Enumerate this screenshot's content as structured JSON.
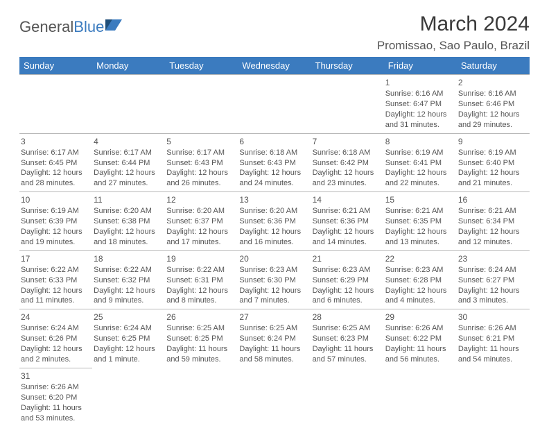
{
  "logo": {
    "text1": "General",
    "text2": "Blue"
  },
  "title": "March 2024",
  "location": "Promissao, Sao Paulo, Brazil",
  "colors": {
    "header_bg": "#3b7bbf",
    "header_fg": "#ffffff",
    "cell_border": "#b8b8b8",
    "week_top_border": "#3b7bbf",
    "text": "#555555",
    "background": "#ffffff"
  },
  "fonts": {
    "title_size_pt": 30,
    "location_size_pt": 17,
    "dayhead_size_pt": 13,
    "cell_size_pt": 11
  },
  "day_headers": [
    "Sunday",
    "Monday",
    "Tuesday",
    "Wednesday",
    "Thursday",
    "Friday",
    "Saturday"
  ],
  "month": {
    "first_weekday": 5,
    "days_in_month": 31
  },
  "days": {
    "1": {
      "sunrise": "6:16 AM",
      "sunset": "6:47 PM",
      "daylight": "12 hours and 31 minutes."
    },
    "2": {
      "sunrise": "6:16 AM",
      "sunset": "6:46 PM",
      "daylight": "12 hours and 29 minutes."
    },
    "3": {
      "sunrise": "6:17 AM",
      "sunset": "6:45 PM",
      "daylight": "12 hours and 28 minutes."
    },
    "4": {
      "sunrise": "6:17 AM",
      "sunset": "6:44 PM",
      "daylight": "12 hours and 27 minutes."
    },
    "5": {
      "sunrise": "6:17 AM",
      "sunset": "6:43 PM",
      "daylight": "12 hours and 26 minutes."
    },
    "6": {
      "sunrise": "6:18 AM",
      "sunset": "6:43 PM",
      "daylight": "12 hours and 24 minutes."
    },
    "7": {
      "sunrise": "6:18 AM",
      "sunset": "6:42 PM",
      "daylight": "12 hours and 23 minutes."
    },
    "8": {
      "sunrise": "6:19 AM",
      "sunset": "6:41 PM",
      "daylight": "12 hours and 22 minutes."
    },
    "9": {
      "sunrise": "6:19 AM",
      "sunset": "6:40 PM",
      "daylight": "12 hours and 21 minutes."
    },
    "10": {
      "sunrise": "6:19 AM",
      "sunset": "6:39 PM",
      "daylight": "12 hours and 19 minutes."
    },
    "11": {
      "sunrise": "6:20 AM",
      "sunset": "6:38 PM",
      "daylight": "12 hours and 18 minutes."
    },
    "12": {
      "sunrise": "6:20 AM",
      "sunset": "6:37 PM",
      "daylight": "12 hours and 17 minutes."
    },
    "13": {
      "sunrise": "6:20 AM",
      "sunset": "6:36 PM",
      "daylight": "12 hours and 16 minutes."
    },
    "14": {
      "sunrise": "6:21 AM",
      "sunset": "6:36 PM",
      "daylight": "12 hours and 14 minutes."
    },
    "15": {
      "sunrise": "6:21 AM",
      "sunset": "6:35 PM",
      "daylight": "12 hours and 13 minutes."
    },
    "16": {
      "sunrise": "6:21 AM",
      "sunset": "6:34 PM",
      "daylight": "12 hours and 12 minutes."
    },
    "17": {
      "sunrise": "6:22 AM",
      "sunset": "6:33 PM",
      "daylight": "12 hours and 11 minutes."
    },
    "18": {
      "sunrise": "6:22 AM",
      "sunset": "6:32 PM",
      "daylight": "12 hours and 9 minutes."
    },
    "19": {
      "sunrise": "6:22 AM",
      "sunset": "6:31 PM",
      "daylight": "12 hours and 8 minutes."
    },
    "20": {
      "sunrise": "6:23 AM",
      "sunset": "6:30 PM",
      "daylight": "12 hours and 7 minutes."
    },
    "21": {
      "sunrise": "6:23 AM",
      "sunset": "6:29 PM",
      "daylight": "12 hours and 6 minutes."
    },
    "22": {
      "sunrise": "6:23 AM",
      "sunset": "6:28 PM",
      "daylight": "12 hours and 4 minutes."
    },
    "23": {
      "sunrise": "6:24 AM",
      "sunset": "6:27 PM",
      "daylight": "12 hours and 3 minutes."
    },
    "24": {
      "sunrise": "6:24 AM",
      "sunset": "6:26 PM",
      "daylight": "12 hours and 2 minutes."
    },
    "25": {
      "sunrise": "6:24 AM",
      "sunset": "6:25 PM",
      "daylight": "12 hours and 1 minute."
    },
    "26": {
      "sunrise": "6:25 AM",
      "sunset": "6:25 PM",
      "daylight": "11 hours and 59 minutes."
    },
    "27": {
      "sunrise": "6:25 AM",
      "sunset": "6:24 PM",
      "daylight": "11 hours and 58 minutes."
    },
    "28": {
      "sunrise": "6:25 AM",
      "sunset": "6:23 PM",
      "daylight": "11 hours and 57 minutes."
    },
    "29": {
      "sunrise": "6:26 AM",
      "sunset": "6:22 PM",
      "daylight": "11 hours and 56 minutes."
    },
    "30": {
      "sunrise": "6:26 AM",
      "sunset": "6:21 PM",
      "daylight": "11 hours and 54 minutes."
    },
    "31": {
      "sunrise": "6:26 AM",
      "sunset": "6:20 PM",
      "daylight": "11 hours and 53 minutes."
    }
  }
}
